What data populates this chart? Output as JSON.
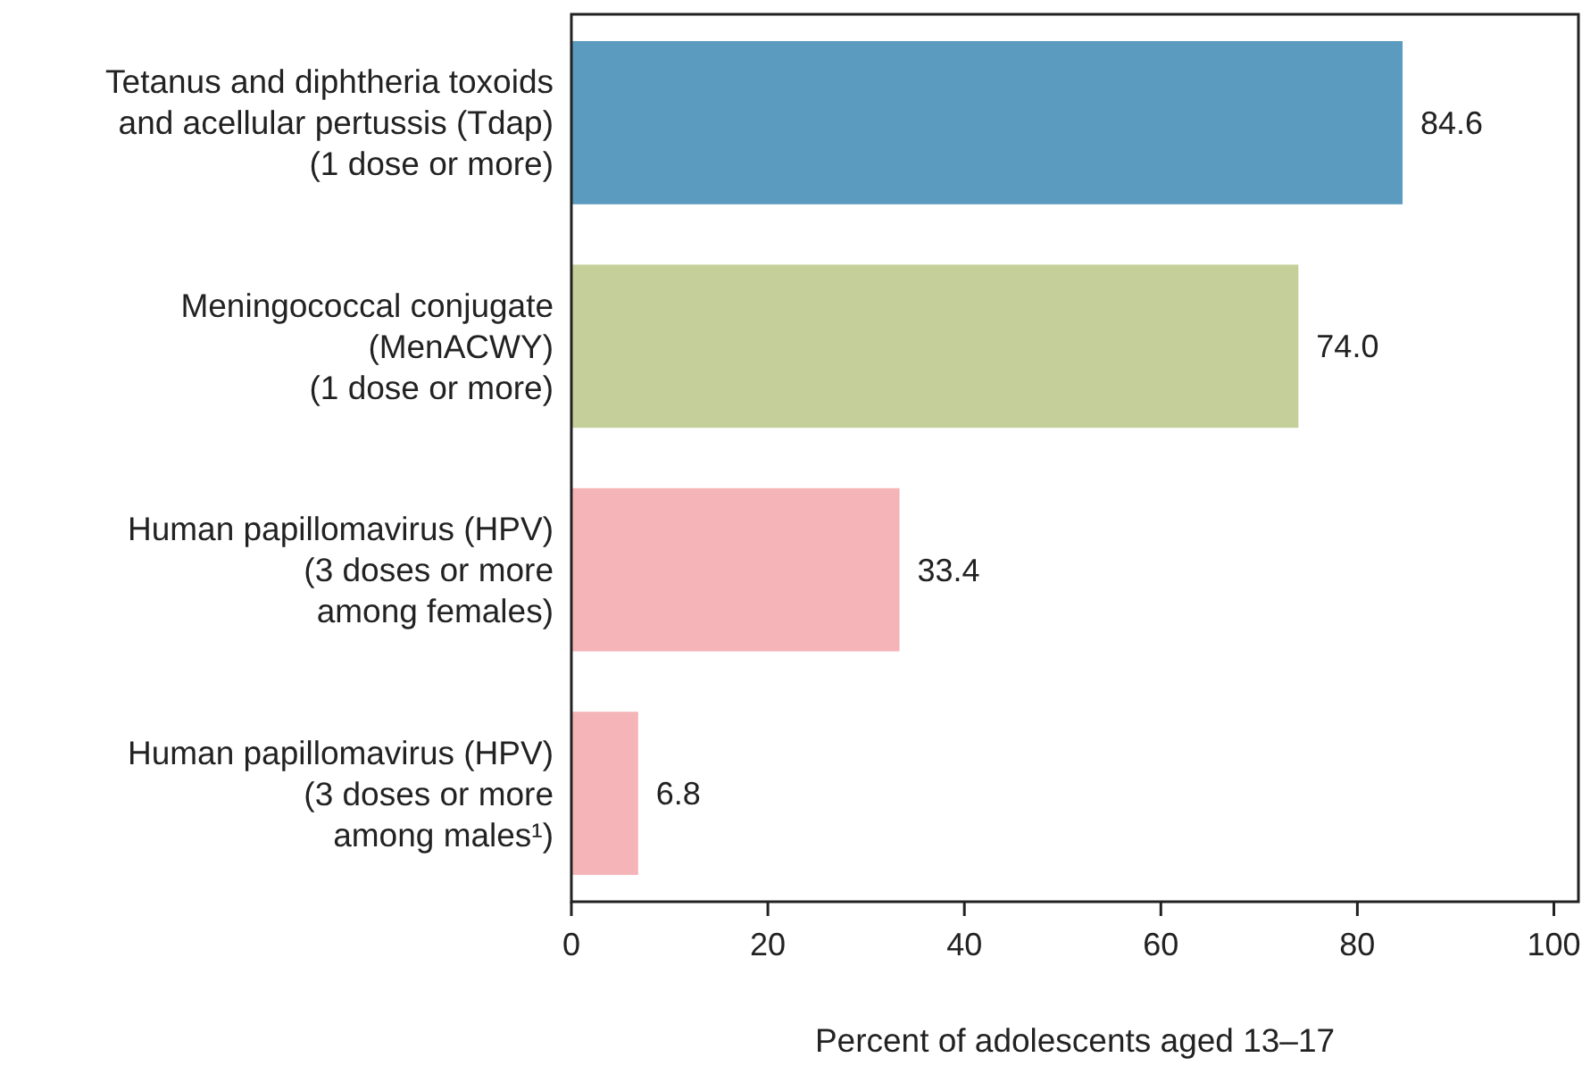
{
  "chart_data": {
    "type": "bar",
    "orientation": "horizontal",
    "xlabel": "Percent of adolescents aged 13–17",
    "categories": [
      "Tetanus and diphtheria toxoids\nand acellular pertussis (Tdap)\n(1 dose or more)",
      "Meningococcal conjugate\n(MenACWY)\n(1 dose or more)",
      "Human papillomavirus (HPV)\n(3 doses or more\namong females)",
      "Human papillomavirus (HPV)\n(3 doses or more\namong males¹)"
    ],
    "values": [
      84.6,
      74.0,
      33.4,
      6.8
    ],
    "colors": [
      "#5b9bbf",
      "#c5cf9a",
      "#f5b5b8",
      "#f5b5b8"
    ],
    "value_labels": [
      "84.6",
      "74.0",
      "33.4",
      "6.8"
    ],
    "xlim": [
      0,
      102.5
    ],
    "xticks": [
      0,
      20,
      40,
      60,
      80,
      100
    ],
    "grid": false
  }
}
